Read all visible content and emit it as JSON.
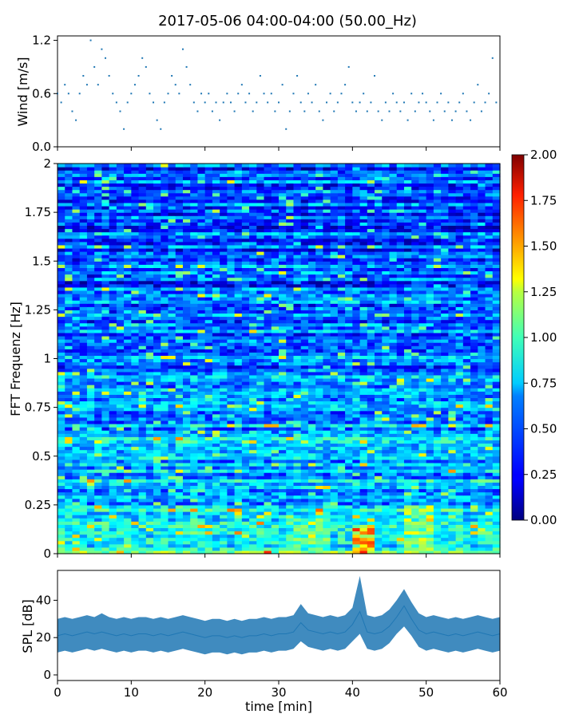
{
  "figure": {
    "title": "2017-05-06 04:00-04:00 (50.00_Hz)"
  },
  "chart_data": [
    {
      "type": "scatter",
      "panel": "wind",
      "xlabel": "",
      "ylabel": "Wind [m/s]",
      "xlim": [
        0,
        60
      ],
      "ylim": [
        0.0,
        1.25
      ],
      "yticks": [
        0.0,
        0.6,
        1.2
      ],
      "ytick_labels": [
        "0.0",
        "0.6",
        "1.2"
      ],
      "color": "#1f77b4",
      "x": [
        0.0,
        0.5,
        1.0,
        1.5,
        2.0,
        2.5,
        3.0,
        3.5,
        4.0,
        4.5,
        5.0,
        5.5,
        6.0,
        6.5,
        7.0,
        7.5,
        8.0,
        8.5,
        9.0,
        9.5,
        10.0,
        10.5,
        11.0,
        11.5,
        12.0,
        12.5,
        13.0,
        13.5,
        14.0,
        14.5,
        15.0,
        15.5,
        16.0,
        16.5,
        17.0,
        17.5,
        18.0,
        18.5,
        19.0,
        19.5,
        20.0,
        20.5,
        21.0,
        21.5,
        22.0,
        22.5,
        23.0,
        23.5,
        24.0,
        24.5,
        25.0,
        25.5,
        26.0,
        26.5,
        27.0,
        27.5,
        28.0,
        28.5,
        29.0,
        29.5,
        30.0,
        30.5,
        31.0,
        31.5,
        32.0,
        32.5,
        33.0,
        33.5,
        34.0,
        34.5,
        35.0,
        35.5,
        36.0,
        36.5,
        37.0,
        37.5,
        38.0,
        38.5,
        39.0,
        39.5,
        40.0,
        40.5,
        41.0,
        41.5,
        42.0,
        42.5,
        43.0,
        43.5,
        44.0,
        44.5,
        45.0,
        45.5,
        46.0,
        46.5,
        47.0,
        47.5,
        48.0,
        48.5,
        49.0,
        49.5,
        50.0,
        50.5,
        51.0,
        51.5,
        52.0,
        52.5,
        53.0,
        53.5,
        54.0,
        54.5,
        55.0,
        55.5,
        56.0,
        56.5,
        57.0,
        57.5,
        58.0,
        58.5,
        59.0,
        59.5
      ],
      "y": [
        0.6,
        0.5,
        0.7,
        0.6,
        0.4,
        0.3,
        0.6,
        0.8,
        0.7,
        1.2,
        0.9,
        0.7,
        1.1,
        1.0,
        0.8,
        0.6,
        0.5,
        0.4,
        0.2,
        0.5,
        0.6,
        0.7,
        0.8,
        1.0,
        0.9,
        0.6,
        0.5,
        0.3,
        0.2,
        0.5,
        0.6,
        0.8,
        0.7,
        0.6,
        1.1,
        0.9,
        0.7,
        0.5,
        0.4,
        0.6,
        0.5,
        0.6,
        0.4,
        0.5,
        0.3,
        0.5,
        0.6,
        0.5,
        0.4,
        0.6,
        0.7,
        0.5,
        0.6,
        0.4,
        0.5,
        0.8,
        0.6,
        0.5,
        0.6,
        0.4,
        0.5,
        0.7,
        0.2,
        0.4,
        0.6,
        0.8,
        0.5,
        0.4,
        0.6,
        0.5,
        0.7,
        0.4,
        0.3,
        0.5,
        0.6,
        0.4,
        0.5,
        0.6,
        0.7,
        0.9,
        0.5,
        0.4,
        0.5,
        0.6,
        0.4,
        0.5,
        0.8,
        0.4,
        0.3,
        0.5,
        0.4,
        0.6,
        0.5,
        0.4,
        0.5,
        0.3,
        0.6,
        0.4,
        0.5,
        0.6,
        0.5,
        0.4,
        0.3,
        0.5,
        0.6,
        0.4,
        0.5,
        0.3,
        0.4,
        0.5,
        0.6,
        0.4,
        0.3,
        0.5,
        0.7,
        0.4,
        0.5,
        0.6,
        1.0,
        0.5
      ]
    },
    {
      "type": "heatmap",
      "panel": "spectrogram",
      "xlabel": "",
      "ylabel": "FFT Frequenz [Hz]",
      "xlim": [
        0,
        60
      ],
      "ylim": [
        0,
        2
      ],
      "yticks": [
        0,
        0.25,
        0.5,
        0.75,
        1,
        1.25,
        1.5,
        1.75,
        2
      ],
      "ytick_labels": [
        "0",
        "0.25",
        "0.5",
        "0.75",
        "1",
        "1.25",
        "1.5",
        "1.75",
        "2"
      ],
      "colormap": "jet",
      "colorbar": {
        "min": 0.0,
        "max": 2.0,
        "ticks": [
          0.0,
          0.25,
          0.5,
          0.75,
          1.0,
          1.25,
          1.5,
          1.75,
          2.0
        ],
        "tick_labels": [
          "0.00",
          "0.25",
          "0.50",
          "0.75",
          "1.00",
          "1.25",
          "1.50",
          "1.75",
          "2.00"
        ]
      },
      "high_energy_regions": [
        {
          "time_min": [
            31,
            37
          ],
          "freq_hz": [
            0.0,
            0.2
          ],
          "level": 1.3
        },
        {
          "time_min": [
            40,
            43
          ],
          "freq_hz": [
            0.0,
            0.15
          ],
          "level": 2.0
        },
        {
          "time_min": [
            47,
            51
          ],
          "freq_hz": [
            0.0,
            0.25
          ],
          "level": 1.5
        },
        {
          "time_min": [
            4,
            6
          ],
          "freq_hz": [
            0.45,
            0.5
          ],
          "level": 1.0
        }
      ]
    },
    {
      "type": "line",
      "panel": "spl",
      "xlabel": "time [min]",
      "ylabel": "SPL [dB]",
      "xlim": [
        0,
        60
      ],
      "ylim": [
        -3,
        56
      ],
      "xticks": [
        0,
        10,
        20,
        30,
        40,
        50,
        60
      ],
      "xtick_labels": [
        "0",
        "10",
        "20",
        "30",
        "40",
        "50",
        "60"
      ],
      "yticks": [
        0,
        20,
        40
      ],
      "ytick_labels": [
        "0",
        "20",
        "40"
      ],
      "color": "#1f77b4",
      "x": [
        0,
        1,
        2,
        3,
        4,
        5,
        6,
        7,
        8,
        9,
        10,
        11,
        12,
        13,
        14,
        15,
        16,
        17,
        18,
        19,
        20,
        21,
        22,
        23,
        24,
        25,
        26,
        27,
        28,
        29,
        30,
        31,
        32,
        33,
        34,
        35,
        36,
        37,
        38,
        39,
        40,
        41,
        42,
        43,
        44,
        45,
        46,
        47,
        48,
        49,
        50,
        51,
        52,
        53,
        54,
        55,
        56,
        57,
        58,
        59,
        60
      ],
      "y": [
        21,
        22,
        21,
        22,
        23,
        22,
        23,
        22,
        21,
        22,
        21,
        22,
        22,
        21,
        22,
        21,
        22,
        23,
        22,
        21,
        20,
        21,
        21,
        20,
        21,
        20,
        21,
        21,
        22,
        21,
        22,
        22,
        23,
        28,
        24,
        23,
        22,
        23,
        22,
        23,
        27,
        34,
        23,
        22,
        23,
        26,
        31,
        37,
        30,
        24,
        22,
        23,
        22,
        21,
        22,
        21,
        22,
        23,
        22,
        21,
        22
      ],
      "y_low": [
        12,
        13,
        12,
        13,
        14,
        13,
        14,
        13,
        12,
        13,
        12,
        13,
        13,
        12,
        13,
        12,
        13,
        14,
        13,
        12,
        11,
        12,
        12,
        11,
        12,
        11,
        12,
        12,
        13,
        12,
        13,
        13,
        14,
        18,
        15,
        14,
        13,
        14,
        13,
        14,
        18,
        22,
        14,
        13,
        14,
        17,
        22,
        26,
        21,
        15,
        13,
        14,
        13,
        12,
        13,
        12,
        13,
        14,
        13,
        12,
        13
      ],
      "y_high": [
        30,
        31,
        30,
        31,
        32,
        31,
        33,
        31,
        30,
        31,
        30,
        31,
        31,
        30,
        31,
        30,
        31,
        32,
        31,
        30,
        29,
        30,
        30,
        29,
        30,
        29,
        30,
        30,
        31,
        30,
        31,
        31,
        32,
        38,
        33,
        32,
        31,
        32,
        31,
        32,
        36,
        53,
        32,
        31,
        32,
        35,
        40,
        46,
        39,
        33,
        31,
        32,
        31,
        30,
        31,
        30,
        31,
        32,
        31,
        30,
        31
      ]
    }
  ]
}
